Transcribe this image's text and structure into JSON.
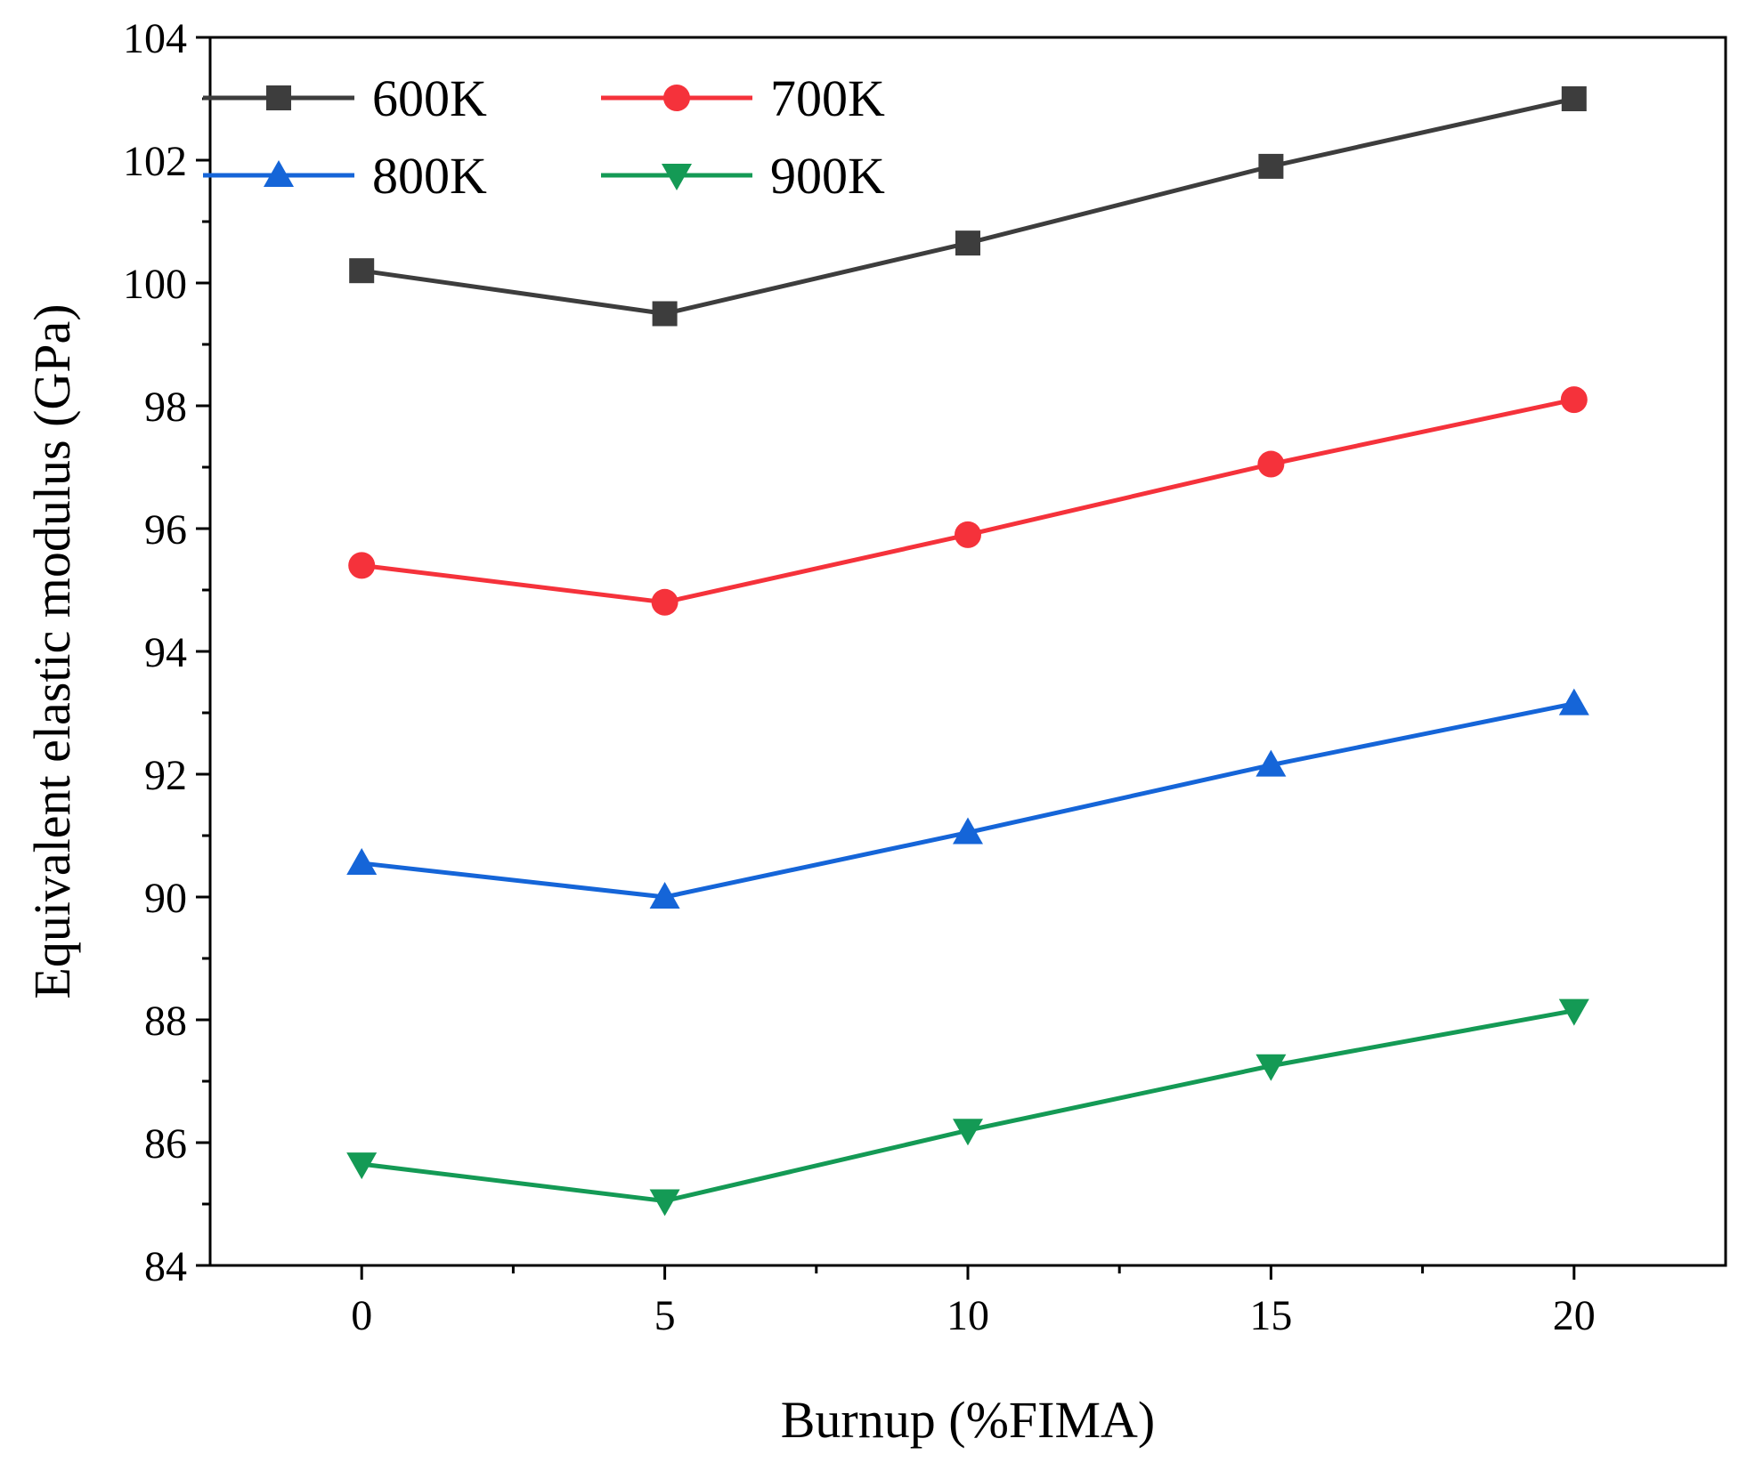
{
  "chart_data": {
    "type": "line",
    "xlabel": "Burnup (%FIMA)",
    "ylabel": "Equivalent elastic modulus (GPa)",
    "x": [
      0,
      5,
      10,
      15,
      20
    ],
    "xlim": [
      -2.5,
      22.5
    ],
    "ylim": [
      84,
      104
    ],
    "xticks": [
      0,
      5,
      10,
      15,
      20
    ],
    "yticks": [
      84,
      86,
      88,
      90,
      92,
      94,
      96,
      98,
      100,
      102,
      104
    ],
    "grid": false,
    "legend_position": "top-left",
    "series": [
      {
        "name": "600K",
        "color": "#3d3d3d",
        "marker": "square",
        "values": [
          100.2,
          99.5,
          100.65,
          101.9,
          103.0
        ]
      },
      {
        "name": "700K",
        "color": "#f5323b",
        "marker": "circle",
        "values": [
          95.4,
          94.8,
          95.9,
          97.05,
          98.1
        ]
      },
      {
        "name": "800K",
        "color": "#1565d8",
        "marker": "triangle-up",
        "values": [
          90.55,
          90.0,
          91.05,
          92.15,
          93.15
        ]
      },
      {
        "name": "900K",
        "color": "#149a55",
        "marker": "triangle-down",
        "values": [
          85.65,
          85.05,
          86.2,
          87.25,
          88.15
        ]
      }
    ]
  }
}
